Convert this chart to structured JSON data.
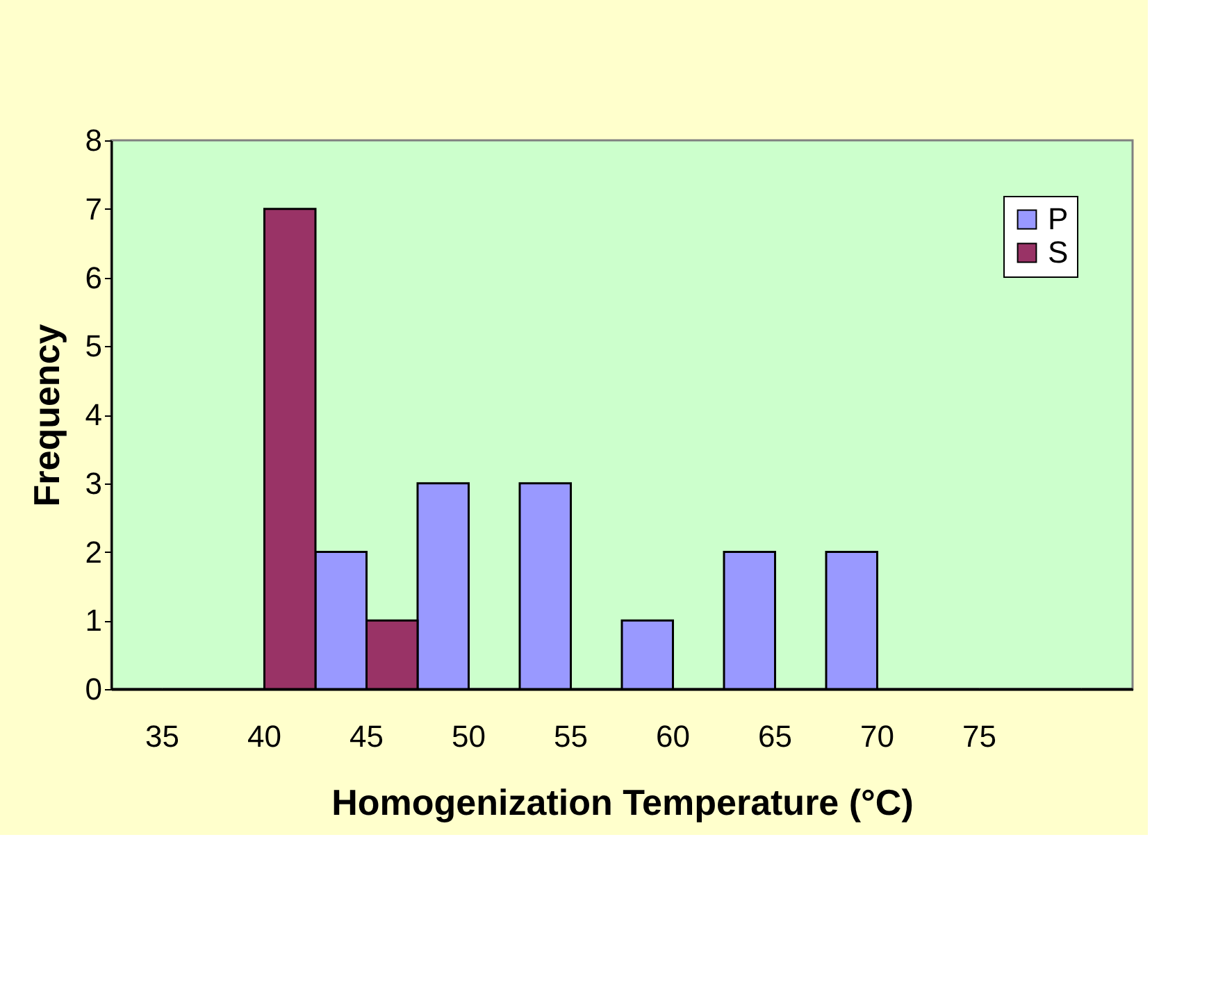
{
  "chart_data": {
    "type": "bar",
    "xlabel": "Homogenization Temperature (°C)",
    "ylabel": "Frequency",
    "categories": [
      "35",
      "40",
      "45",
      "50",
      "55",
      "60",
      "65",
      "70",
      "75",
      null
    ],
    "series": [
      {
        "name": "P",
        "color": "#9999ff",
        "values": [
          0,
          0,
          2,
          3,
          3,
          1,
          2,
          2,
          0,
          0
        ]
      },
      {
        "name": "S",
        "color": "#993366",
        "values": [
          0,
          7,
          1,
          0,
          0,
          0,
          0,
          0,
          0,
          0
        ]
      }
    ],
    "ylim": [
      0,
      8
    ],
    "yticks": [
      0,
      1,
      2,
      3,
      4,
      5,
      6,
      7,
      8
    ],
    "grid": false,
    "legend": "top right"
  }
}
